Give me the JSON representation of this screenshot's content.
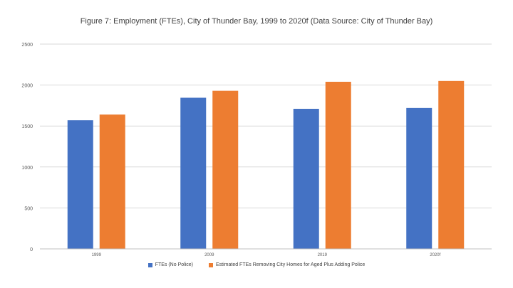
{
  "chart_data": {
    "type": "bar",
    "title": "Figure 7: Employment (FTEs), City of Thunder Bay, 1999 to 2020f (Data Source: City of Thunder Bay)",
    "categories": [
      "1999",
      "2009",
      "2019",
      "2020f"
    ],
    "series": [
      {
        "name": "FTEs (No Police)",
        "color": "#4472C4",
        "values": [
          1570,
          1845,
          1710,
          1720
        ]
      },
      {
        "name": "Estimated FTEs Removing City Homes for Aged Plus Adding Police",
        "color": "#ED7D31",
        "values": [
          1640,
          1930,
          2040,
          2050
        ]
      }
    ],
    "ylim": [
      0,
      2500
    ],
    "yticks": [
      0,
      500,
      1000,
      1500,
      2000,
      2500
    ],
    "grid": true,
    "legend": "bottom"
  }
}
